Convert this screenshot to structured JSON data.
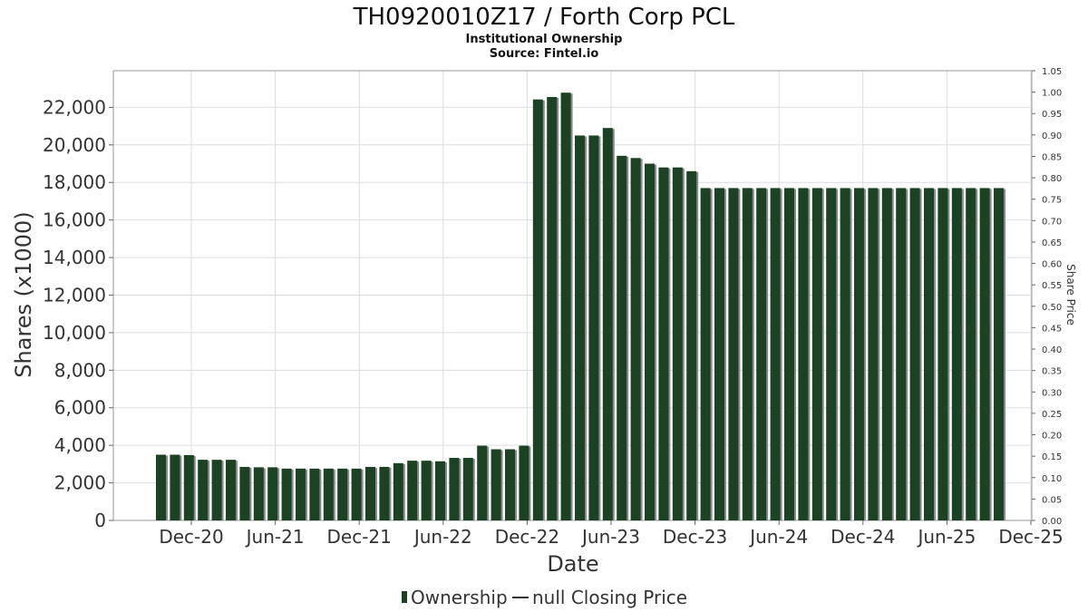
{
  "chart_data": {
    "type": "bar",
    "title": "TH0920010Z17 / Forth Corp PCL",
    "subtitle": "Institutional Ownership",
    "source": "Source: Fintel.io",
    "xlabel": "Date",
    "ylabel": "Shares (x1000)",
    "y2label": "Share Price",
    "ylim": [
      0,
      23950
    ],
    "y2lim": [
      0,
      1.05
    ],
    "yticks": [
      "0",
      "2,000",
      "4,000",
      "6,000",
      "8,000",
      "10,000",
      "12,000",
      "14,000",
      "16,000",
      "18,000",
      "20,000",
      "22,000"
    ],
    "y2ticks": [
      "0.00",
      "0.05",
      "0.10",
      "0.15",
      "0.20",
      "0.25",
      "0.30",
      "0.35",
      "0.40",
      "0.45",
      "0.50",
      "0.55",
      "0.60",
      "0.65",
      "0.70",
      "0.75",
      "0.80",
      "0.85",
      "0.90",
      "0.95",
      "1.00",
      "1.05"
    ],
    "xticks": [
      "Dec-20",
      "Jun-21",
      "Dec-21",
      "Jun-22",
      "Dec-22",
      "Jun-23",
      "Dec-23",
      "Jun-24",
      "Dec-24",
      "Jun-25",
      "Dec-25"
    ],
    "grid": true,
    "legend": {
      "placement": "bottom",
      "entries": [
        "Ownership",
        "null Closing Price"
      ]
    },
    "series": [
      {
        "name": "Ownership",
        "color": "#1a4223",
        "values": [
          3500,
          3500,
          3480,
          3230,
          3230,
          3230,
          2850,
          2830,
          2830,
          2760,
          2760,
          2760,
          2760,
          2760,
          2760,
          2850,
          2850,
          3050,
          3180,
          3180,
          3150,
          3330,
          3330,
          3980,
          3790,
          3790,
          3980,
          22420,
          22550,
          22780,
          20500,
          20500,
          20900,
          19420,
          19300,
          19000,
          18800,
          18800,
          18600,
          17700,
          17700,
          17700,
          17700,
          17700,
          17700,
          17700,
          17700,
          17700,
          17700,
          17700,
          17700,
          17700,
          17700,
          17700,
          17700,
          17700,
          17700,
          17700,
          17700,
          17700,
          17700
        ]
      }
    ]
  }
}
